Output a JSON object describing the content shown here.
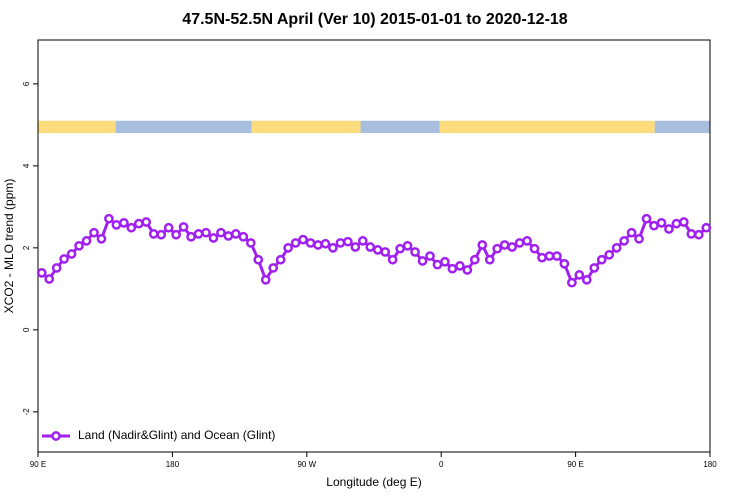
{
  "chart_data": {
    "type": "line",
    "title": "47.5N-52.5N April (Ver 10)   2015-01-01 to 2020-12-18",
    "x_label": "Longitude (deg E)",
    "y_label": "XCO2 - MLO trend (ppm)",
    "x": [
      92.5,
      97.5,
      102.5,
      107.5,
      112.5,
      117.5,
      122.5,
      127.5,
      132.5,
      137.5,
      142.5,
      147.5,
      152.5,
      157.5,
      162.5,
      167.5,
      172.5,
      177.5,
      182.5,
      187.5,
      192.5,
      197.5,
      202.5,
      207.5,
      212.5,
      217.5,
      222.5,
      227.5,
      232.5,
      237.5,
      242.5,
      247.5,
      252.5,
      257.5,
      262.5,
      267.5,
      272.5,
      277.5,
      282.5,
      287.5,
      292.5,
      297.5,
      302.5,
      307.5,
      312.5,
      317.5,
      322.5,
      327.5,
      332.5,
      337.5,
      342.5,
      347.5,
      352.5,
      357.5,
      362.5,
      367.5,
      372.5,
      377.5,
      382.5,
      387.5,
      392.5,
      397.5,
      402.5,
      407.5,
      412.5,
      417.5,
      422.5,
      427.5,
      432.5,
      437.5,
      442.5,
      447.5,
      452.5,
      457.5,
      462.5,
      467.5,
      472.5,
      477.5,
      482.5,
      487.5,
      492.5,
      497.5,
      502.5,
      507.5,
      512.5,
      517.5,
      522.5,
      527.5,
      532.5,
      537.5
    ],
    "series": [
      {
        "name": "Land (Nadir&Glint) and Ocean (Glint)",
        "color": "#a020f0",
        "values": [
          1.39,
          1.24,
          1.51,
          1.73,
          1.85,
          2.05,
          2.17,
          2.37,
          2.22,
          2.71,
          2.56,
          2.61,
          2.49,
          2.59,
          2.63,
          2.34,
          2.32,
          2.49,
          2.32,
          2.51,
          2.27,
          2.34,
          2.37,
          2.24,
          2.37,
          2.29,
          2.34,
          2.27,
          2.12,
          1.71,
          1.22,
          1.51,
          1.71,
          2.0,
          2.12,
          2.2,
          2.12,
          2.07,
          2.1,
          2.0,
          2.12,
          2.15,
          2.02,
          2.17,
          2.02,
          1.95,
          1.9,
          1.71,
          1.98,
          2.05,
          1.9,
          1.68,
          1.8,
          1.59,
          1.66,
          1.49,
          1.56,
          1.46,
          1.71,
          2.07,
          1.71,
          1.98,
          2.07,
          2.02,
          2.12,
          2.17,
          1.98,
          1.76,
          1.8,
          1.8,
          1.61,
          1.15,
          1.34,
          1.22,
          1.51,
          1.71,
          1.83,
          2.0,
          2.17,
          2.37,
          2.22,
          2.71,
          2.54,
          2.61,
          2.46,
          2.59,
          2.63,
          2.34,
          2.32,
          2.49
        ]
      }
    ],
    "xlim": [
      90,
      540
    ],
    "xticks": [
      {
        "value": 90,
        "label": "90 E"
      },
      {
        "value": 180,
        "label": "180"
      },
      {
        "value": 270,
        "label": "90 W"
      },
      {
        "value": 360,
        "label": "0"
      },
      {
        "value": 450,
        "label": "90 E"
      },
      {
        "value": 540,
        "label": "180"
      }
    ],
    "ylim": [
      -2.98,
      7.07
    ],
    "yticks": [
      -2,
      0,
      2,
      4,
      6
    ],
    "legend": "bottom-left",
    "band": {
      "ylim": [
        4.8,
        5.1
      ],
      "segments": [
        {
          "xlim": [
            90,
            142
          ],
          "color": "#fddc7e"
        },
        {
          "xlim": [
            142,
            233
          ],
          "color": "#a7bedf"
        },
        {
          "xlim": [
            233,
            306
          ],
          "color": "#fddc7e"
        },
        {
          "xlim": [
            306,
            359
          ],
          "color": "#a7bedf"
        },
        {
          "xlim": [
            359,
            503
          ],
          "color": "#fddc7e"
        },
        {
          "xlim": [
            503,
            540
          ],
          "color": "#a7bedf"
        }
      ]
    }
  }
}
